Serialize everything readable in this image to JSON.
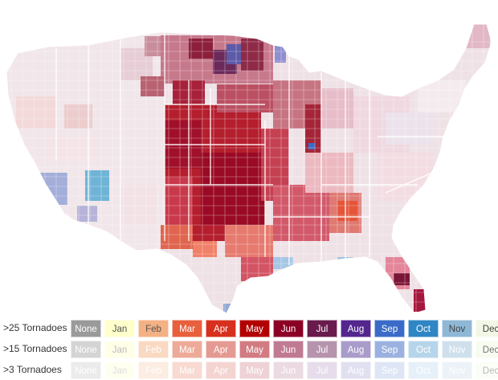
{
  "legend": {
    "months": [
      "None",
      "Jan",
      "Feb",
      "Mar",
      "Apr",
      "May",
      "Jun",
      "Jul",
      "Aug",
      "Sep",
      "Oct",
      "Nov",
      "Dec"
    ],
    "rows": [
      {
        "label": ">25 Tornadoes",
        "colors": [
          "#9a9a9a",
          "#ffffcc",
          "#f4b183",
          "#e8603c",
          "#d7301f",
          "#b30000",
          "#8c0026",
          "#6a1b4d",
          "#54278f",
          "#3a6bc8",
          "#2f86c4",
          "#8fb7d6",
          "#f1f7e4"
        ],
        "text_colors": [
          "#ffffff",
          "#555555",
          "#555555",
          "#ffffff",
          "#ffffff",
          "#ffffff",
          "#ffffff",
          "#ffffff",
          "#ffffff",
          "#ffffff",
          "#ffffff",
          "#444444",
          "#444444"
        ]
      },
      {
        "label": ">15 Tornadoes",
        "colors": [
          "#d4d4d4",
          "#ffffe8",
          "#f9d9c2",
          "#eeaa99",
          "#e49a92",
          "#d27b82",
          "#c07b93",
          "#b694ad",
          "#a99ccb",
          "#9bb2e0",
          "#b7d5ea",
          "#cfe0ec",
          "#f7fbf0"
        ],
        "text_colors": [
          "#ffffff",
          "#bbbbbb",
          "#ffffff",
          "#ffffff",
          "#ffffff",
          "#ffffff",
          "#ffffff",
          "#ffffff",
          "#ffffff",
          "#ffffff",
          "#ffffff",
          "#ffffff",
          "#777777"
        ]
      },
      {
        "label": ">3 Tornadoes",
        "colors": [
          "#ebebeb",
          "#ffffef",
          "#fcece2",
          "#f8dad2",
          "#f4d4d1",
          "#efd2d6",
          "#ebdae1",
          "#e6dceb",
          "#e1e0f0",
          "#dee6f5",
          "#e6f0f8",
          "#ecf2f8",
          "#fbfdf7"
        ],
        "text_colors": [
          "#ffffff",
          "#dddddd",
          "#ffffff",
          "#ffffff",
          "#ffffff",
          "#ffffff",
          "#ffffff",
          "#ffffff",
          "#ffffff",
          "#ffffff",
          "#ffffff",
          "#ffffff",
          "#bbbbbb"
        ]
      }
    ]
  }
}
